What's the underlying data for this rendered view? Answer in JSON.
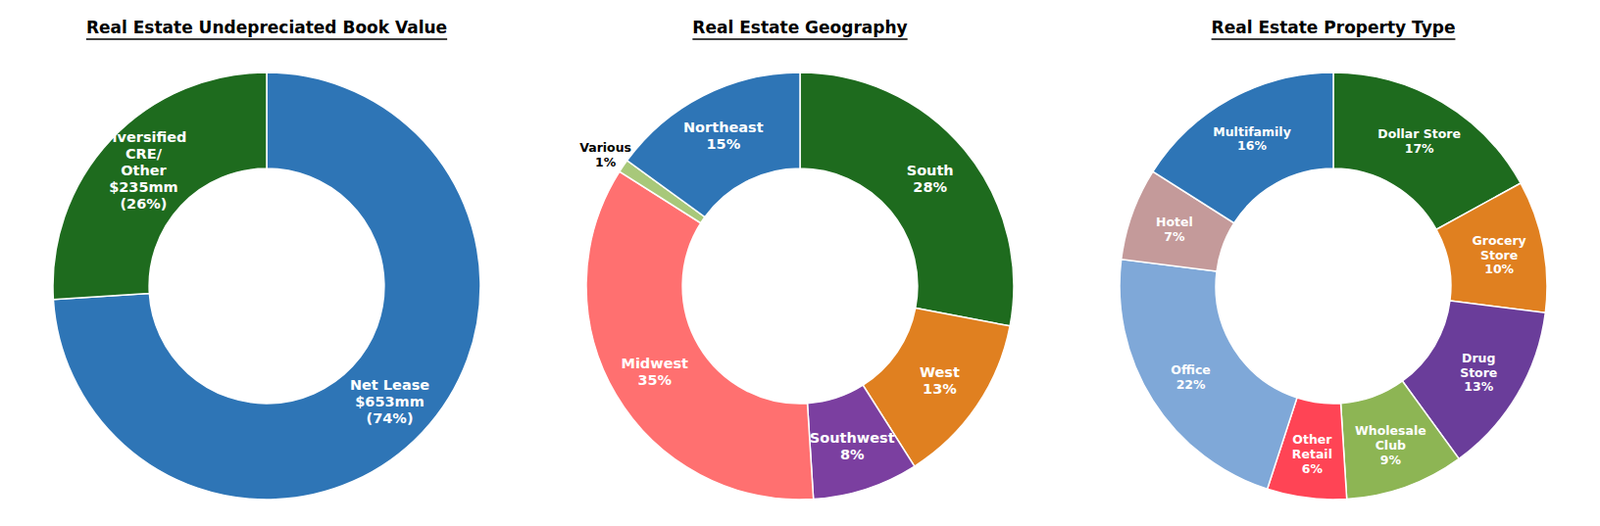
{
  "chart_data": [
    {
      "type": "donut",
      "title": "Real Estate Undepreciated Book Value",
      "categories": [
        "Net Lease",
        "Diversified\nCRE/\nOther"
      ],
      "values": [
        74,
        26
      ],
      "value_labels": [
        "$653mm\n(74%)",
        "$235mm\n(26%)"
      ],
      "colors": [
        "#2E75B6",
        "#1E6B1E"
      ]
    },
    {
      "type": "donut",
      "title": "Real Estate Geography",
      "categories": [
        "South",
        "West",
        "Southwest",
        "Midwest",
        "Various",
        "Northeast"
      ],
      "values": [
        28,
        13,
        8,
        35,
        1,
        15
      ],
      "value_labels": [
        "28%",
        "13%",
        "8%",
        "35%",
        "1%",
        "15%"
      ],
      "colors": [
        "#1E6B1E",
        "#E08020",
        "#7B3FA0",
        "#FF7070",
        "#A8C87A",
        "#2E75B6"
      ]
    },
    {
      "type": "donut",
      "title": "Real Estate Property Type",
      "categories": [
        "Dollar Store",
        "Grocery\nStore",
        "Drug\nStore",
        "Wholesale\nClub",
        "Other\nRetail",
        "Office",
        "Hotel",
        "Multifamily"
      ],
      "values": [
        17,
        10,
        13,
        9,
        6,
        22,
        7,
        16
      ],
      "value_labels": [
        "17%",
        "10%",
        "13%",
        "9%",
        "6%",
        "22%",
        "7%",
        "16%"
      ],
      "colors": [
        "#1E6B1E",
        "#E08020",
        "#6A3D9A",
        "#8DB554",
        "#FF4455",
        "#7FA8D8",
        "#C49A9A",
        "#2E75B6"
      ]
    }
  ]
}
